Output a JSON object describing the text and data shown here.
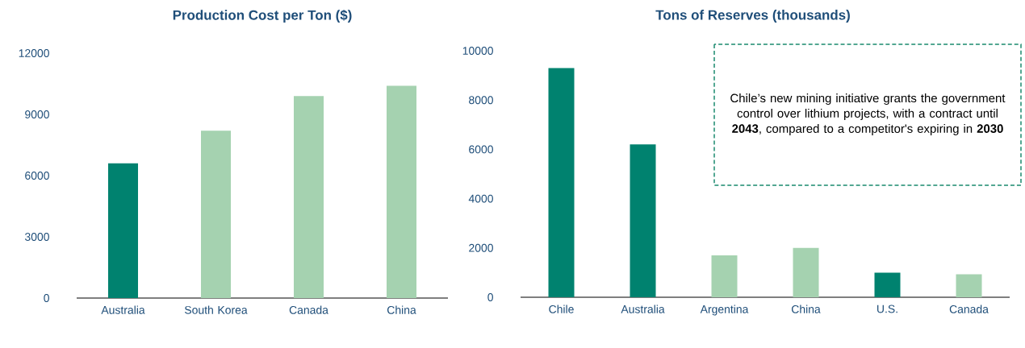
{
  "chart_data": [
    {
      "type": "bar",
      "title": "Production Cost per Ton ($)",
      "categories": [
        "Australia",
        "South Korea",
        "Canada",
        "China"
      ],
      "values": [
        6600,
        8200,
        9900,
        10400
      ],
      "colors": [
        "#00826f",
        "#a5d2b0",
        "#a5d2b0",
        "#a5d2b0"
      ],
      "ylim": [
        0,
        12000
      ],
      "yticks": [
        0,
        3000,
        6000,
        9000,
        12000
      ]
    },
    {
      "type": "bar",
      "title": "Tons of Reserves (thousands)",
      "categories": [
        "Chile",
        "Australia",
        "Argentina",
        "China",
        "U.S.",
        "Canada"
      ],
      "values": [
        9300,
        6200,
        1700,
        2000,
        1000,
        930
      ],
      "colors": [
        "#00826f",
        "#00826f",
        "#a5d2b0",
        "#a5d2b0",
        "#00826f",
        "#a5d2b0"
      ],
      "ylim": [
        0,
        10000
      ],
      "yticks": [
        0,
        2000,
        4000,
        6000,
        8000,
        10000
      ],
      "annotations": [
        "Chile’s new mining initiative grants the government control over lithium projects, with a contract until **2043**, compared to a competitor's expiring in **2030**"
      ]
    }
  ]
}
